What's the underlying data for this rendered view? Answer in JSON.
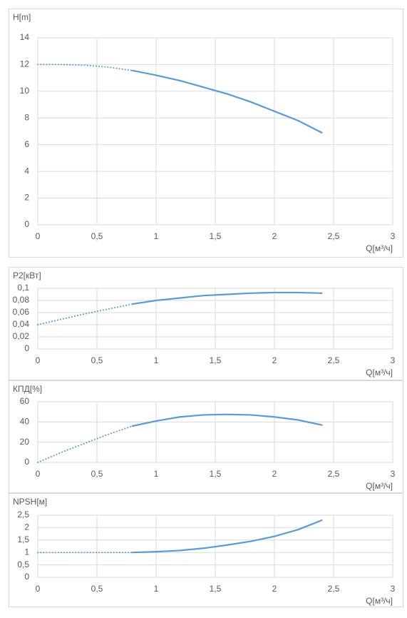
{
  "chart_data": [
    {
      "type": "line",
      "ylabel": "H[m]",
      "xlabel": "Q[м³/ч]",
      "x": [
        0,
        0.2,
        0.4,
        0.6,
        0.8,
        1.0,
        1.2,
        1.4,
        1.6,
        1.8,
        2.0,
        2.2,
        2.4
      ],
      "series": [
        {
          "color": "#5b9bd5",
          "style": "dotted",
          "values": [
            12,
            12,
            11.95,
            11.8,
            11.55,
            null,
            null,
            null,
            null,
            null,
            null,
            null,
            null
          ]
        },
        {
          "color": "#5b9bd5",
          "style": "solid",
          "values": [
            null,
            null,
            null,
            null,
            11.55,
            11.2,
            10.8,
            10.3,
            9.8,
            9.2,
            8.5,
            7.8,
            6.9
          ]
        }
      ],
      "xlim": [
        0,
        3
      ],
      "xticks": [
        0,
        {
          "value": 0.5,
          "label": "0,5"
        },
        1,
        {
          "value": 1.5,
          "label": "1,5"
        },
        2,
        {
          "value": 2.5,
          "label": "2,5"
        },
        3
      ],
      "ylim": [
        0,
        14
      ],
      "yticks": [
        0,
        2,
        4,
        6,
        8,
        10,
        12,
        14
      ],
      "grid": true
    },
    {
      "type": "line",
      "ylabel": "P2[кВт]",
      "xlabel": "Q[м³/ч]",
      "x": [
        0,
        0.2,
        0.4,
        0.6,
        0.8,
        1.0,
        1.2,
        1.4,
        1.6,
        1.8,
        2.0,
        2.2,
        2.4
      ],
      "series": [
        {
          "color": "#5b9bd5",
          "style": "dotted",
          "values": [
            0.04,
            0.049,
            0.058,
            0.066,
            0.074,
            null,
            null,
            null,
            null,
            null,
            null,
            null,
            null
          ]
        },
        {
          "color": "#5b9bd5",
          "style": "solid",
          "values": [
            null,
            null,
            null,
            null,
            0.074,
            0.08,
            0.084,
            0.088,
            0.09,
            0.092,
            0.093,
            0.093,
            0.092
          ]
        }
      ],
      "xlim": [
        0,
        3
      ],
      "xticks": [
        0,
        {
          "value": 0.5,
          "label": "0,5"
        },
        1,
        {
          "value": 1.5,
          "label": "1,5"
        },
        2,
        {
          "value": 2.5,
          "label": "2,5"
        },
        3
      ],
      "ylim": [
        0,
        0.1
      ],
      "yticks": [
        0,
        {
          "value": 0.02,
          "label": "0,02"
        },
        {
          "value": 0.04,
          "label": "0,04"
        },
        {
          "value": 0.06,
          "label": "0,06"
        },
        {
          "value": 0.08,
          "label": "0,08"
        },
        {
          "value": 0.1,
          "label": "0,1"
        }
      ],
      "grid": true
    },
    {
      "type": "line",
      "ylabel": "КПД[%]",
      "xlabel": "Q[м³/ч]",
      "x": [
        0,
        0.2,
        0.4,
        0.6,
        0.8,
        1.0,
        1.2,
        1.4,
        1.6,
        1.8,
        2.0,
        2.2,
        2.4
      ],
      "series": [
        {
          "color": "#5b9bd5",
          "style": "dotted",
          "values": [
            0,
            10,
            19,
            28,
            36,
            null,
            null,
            null,
            null,
            null,
            null,
            null,
            null
          ]
        },
        {
          "color": "#5b9bd5",
          "style": "solid",
          "values": [
            null,
            null,
            null,
            null,
            36,
            41,
            45,
            47,
            47.5,
            47,
            45,
            42,
            37
          ]
        }
      ],
      "xlim": [
        0,
        3
      ],
      "xticks": [
        0,
        {
          "value": 0.5,
          "label": "0,5"
        },
        1,
        {
          "value": 1.5,
          "label": "1,5"
        },
        2,
        {
          "value": 2.5,
          "label": "2,5"
        },
        3
      ],
      "ylim": [
        0,
        60
      ],
      "yticks": [
        0,
        20,
        40,
        60
      ],
      "grid": true
    },
    {
      "type": "line",
      "ylabel": "NPSH[м]",
      "xlabel": "Q[м³/ч]",
      "x": [
        0,
        0.2,
        0.4,
        0.6,
        0.8,
        1.0,
        1.2,
        1.4,
        1.6,
        1.8,
        2.0,
        2.2,
        2.4
      ],
      "series": [
        {
          "color": "#5b9bd5",
          "style": "dotted",
          "values": [
            1,
            1,
            1,
            1,
            1,
            null,
            null,
            null,
            null,
            null,
            null,
            null,
            null
          ]
        },
        {
          "color": "#5b9bd5",
          "style": "solid",
          "values": [
            null,
            null,
            null,
            null,
            1,
            1.03,
            1.08,
            1.17,
            1.3,
            1.45,
            1.65,
            1.92,
            2.3
          ]
        }
      ],
      "xlim": [
        0,
        3
      ],
      "xticks": [
        0,
        {
          "value": 0.5,
          "label": "0,5"
        },
        1,
        {
          "value": 1.5,
          "label": "1,5"
        },
        2,
        {
          "value": 2.5,
          "label": "2,5"
        },
        3
      ],
      "ylim": [
        0,
        2.5
      ],
      "yticks": [
        0,
        {
          "value": 0.5,
          "label": "0,5"
        },
        1,
        {
          "value": 1.5,
          "label": "1,5"
        },
        2,
        {
          "value": 2.5,
          "label": "2,5"
        }
      ],
      "grid": true
    }
  ]
}
